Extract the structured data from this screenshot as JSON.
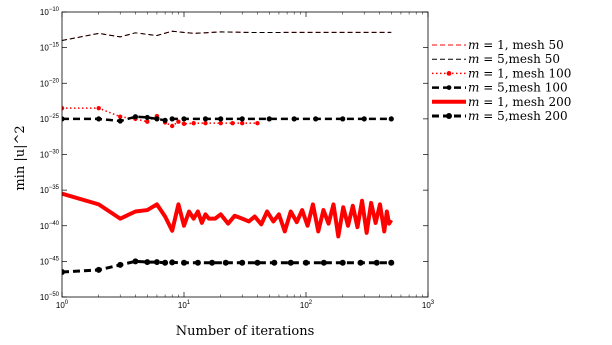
{
  "chart_data": {
    "type": "line",
    "xlabel": "Number of iterations",
    "ylabel": "min |u|^2",
    "xscale": "log",
    "yscale": "log",
    "xlim": [
      1,
      1000
    ],
    "ylim": [
      1e-50,
      1e-10
    ],
    "x_ticks": [
      {
        "value": 1,
        "base": "10",
        "exp": "0"
      },
      {
        "value": 10,
        "base": "10",
        "exp": "1"
      },
      {
        "value": 100,
        "base": "10",
        "exp": "2"
      },
      {
        "value": 1000,
        "base": "10",
        "exp": "3"
      }
    ],
    "y_ticks": [
      {
        "value": 1e-10,
        "base": "10",
        "exp": "−10"
      },
      {
        "value": 1e-15,
        "base": "10",
        "exp": "−15"
      },
      {
        "value": 1e-20,
        "base": "10",
        "exp": "−20"
      },
      {
        "value": 1e-25,
        "base": "10",
        "exp": "−25"
      },
      {
        "value": 1e-30,
        "base": "10",
        "exp": "−30"
      },
      {
        "value": 1e-35,
        "base": "10",
        "exp": "−35"
      },
      {
        "value": 1e-40,
        "base": "10",
        "exp": "−40"
      },
      {
        "value": 1e-45,
        "base": "10",
        "exp": "−45"
      },
      {
        "value": 1e-50,
        "base": "10",
        "exp": "−50"
      }
    ],
    "grid": false,
    "legend_position": "outside-right",
    "series": [
      {
        "name": "m = 1, mesh 50",
        "m_label": "m",
        "rest_label": " = 1, mesh 50",
        "color": "#ff0000",
        "style": "dashed",
        "width": 1,
        "marker": "none",
        "points": [
          [
            1,
            1e-14
          ],
          [
            2,
            1e-13
          ],
          [
            3,
            3.2e-14
          ],
          [
            4,
            1.2e-13
          ],
          [
            6,
            5e-14
          ],
          [
            8,
            2e-13
          ],
          [
            12,
            1e-13
          ],
          [
            20,
            1.6e-13
          ],
          [
            40,
            1.3e-13
          ],
          [
            100,
            1.4e-13
          ],
          [
            200,
            1.4e-13
          ],
          [
            500,
            1.4e-13
          ]
        ]
      },
      {
        "name": "m = 5,mesh 50",
        "m_label": "m",
        "rest_label": " = 5,mesh 50",
        "color": "#000000",
        "style": "dashed",
        "width": 1,
        "marker": "none",
        "points": [
          [
            1,
            1e-14
          ],
          [
            2,
            1e-13
          ],
          [
            3,
            3.2e-14
          ],
          [
            4,
            1.2e-13
          ],
          [
            6,
            5e-14
          ],
          [
            8,
            2e-13
          ],
          [
            12,
            1e-13
          ],
          [
            20,
            1.6e-13
          ],
          [
            40,
            1.3e-13
          ],
          [
            100,
            1.4e-13
          ],
          [
            200,
            1.4e-13
          ],
          [
            500,
            1.4e-13
          ]
        ]
      },
      {
        "name": "m = 1, mesh 100",
        "m_label": "m",
        "rest_label": " = 1, mesh 100",
        "color": "#ff0000",
        "style": "dotted",
        "width": 1.5,
        "marker": "dot",
        "marker_every": "all",
        "points": [
          [
            1,
            3.2e-24
          ],
          [
            2,
            3.2e-24
          ],
          [
            3,
            2e-25
          ],
          [
            4,
            1e-25
          ],
          [
            5,
            4e-26
          ],
          [
            6,
            2.5e-25
          ],
          [
            7,
            3.2e-26
          ],
          [
            8,
            1e-26
          ],
          [
            9,
            4e-26
          ],
          [
            10,
            2e-26
          ],
          [
            12,
            2.5e-26
          ],
          [
            15,
            2.5e-26
          ],
          [
            20,
            2.5e-26
          ],
          [
            25,
            2.5e-26
          ],
          [
            30,
            2.5e-26
          ],
          [
            40,
            2.5e-26
          ]
        ]
      },
      {
        "name": "m = 5,mesh 100",
        "m_label": "m",
        "rest_label": " = 5,mesh 100",
        "color": "#000000",
        "style": "dashed",
        "width": 2.5,
        "marker": "dot",
        "marker_every": "all",
        "points": [
          [
            1,
            1e-25
          ],
          [
            2,
            1e-25
          ],
          [
            3,
            5e-26
          ],
          [
            4,
            2e-25
          ],
          [
            5,
            1.6e-25
          ],
          [
            6,
            1e-25
          ],
          [
            7,
            6.3e-26
          ],
          [
            8,
            1e-25
          ],
          [
            10,
            1e-25
          ],
          [
            15,
            1e-25
          ],
          [
            20,
            1e-25
          ],
          [
            30,
            1e-25
          ],
          [
            50,
            1e-25
          ],
          [
            80,
            1e-25
          ],
          [
            120,
            1e-25
          ],
          [
            200,
            1e-25
          ],
          [
            300,
            1e-25
          ],
          [
            500,
            1e-25
          ]
        ]
      },
      {
        "name": "m = 1, mesh 200",
        "m_label": "m",
        "rest_label": " = 1, mesh 200",
        "color": "#ff0000",
        "style": "solid",
        "width": 4,
        "marker": "none",
        "points": [
          [
            1,
            3.2e-36
          ],
          [
            2,
            1e-37
          ],
          [
            3,
            1e-39
          ],
          [
            4,
            1e-38
          ],
          [
            5,
            1.6e-38
          ],
          [
            6,
            1e-37
          ],
          [
            7,
            2e-39
          ],
          [
            8,
            2e-41
          ],
          [
            9,
            1e-37
          ],
          [
            10,
            1e-40
          ],
          [
            11,
            1e-38
          ],
          [
            12,
            1e-39
          ],
          [
            13,
            1e-38
          ],
          [
            14,
            2.5e-40
          ],
          [
            15,
            4e-39
          ],
          [
            16,
            1e-39
          ],
          [
            18,
            1e-39
          ],
          [
            20,
            4e-39
          ],
          [
            23,
            2e-40
          ],
          [
            26,
            2.5e-39
          ],
          [
            30,
            1e-39
          ],
          [
            34,
            4e-40
          ],
          [
            38,
            2e-39
          ],
          [
            43,
            1.6e-40
          ],
          [
            48,
            1e-38
          ],
          [
            54,
            4e-40
          ],
          [
            60,
            4e-39
          ],
          [
            67,
            1.6e-41
          ],
          [
            75,
            1e-38
          ],
          [
            84,
            3.2e-40
          ],
          [
            93,
            1.6e-38
          ],
          [
            103,
            1e-40
          ],
          [
            114,
            1e-37
          ],
          [
            126,
            1.6e-41
          ],
          [
            139,
            1.6e-38
          ],
          [
            153,
            2e-40
          ],
          [
            168,
            1e-37
          ],
          [
            184,
            3.2e-42
          ],
          [
            202,
            4e-38
          ],
          [
            221,
            1e-40
          ],
          [
            242,
            6.3e-38
          ],
          [
            264,
            6.3e-41
          ],
          [
            288,
            3.2e-37
          ],
          [
            314,
            1e-41
          ],
          [
            342,
            1.6e-37
          ],
          [
            372,
            2.5e-40
          ],
          [
            404,
            1e-37
          ],
          [
            438,
            1.6e-41
          ],
          [
            460,
            1e-38
          ],
          [
            480,
            2e-40
          ],
          [
            500,
            6.3e-40
          ]
        ]
      },
      {
        "name": "m = 5,mesh 200",
        "m_label": "m",
        "rest_label": " = 5,mesh 200",
        "color": "#000000",
        "style": "dashed",
        "width": 3,
        "marker": "dot",
        "marker_every": "all",
        "points": [
          [
            1,
            3.2e-47
          ],
          [
            2,
            6.3e-47
          ],
          [
            3,
            3.2e-46
          ],
          [
            4,
            1e-45
          ],
          [
            5,
            8e-46
          ],
          [
            6,
            8e-46
          ],
          [
            7,
            6.3e-46
          ],
          [
            8,
            7.1e-46
          ],
          [
            10,
            6.3e-46
          ],
          [
            13,
            6.3e-46
          ],
          [
            17,
            6.3e-46
          ],
          [
            22,
            6.3e-46
          ],
          [
            30,
            6.3e-46
          ],
          [
            40,
            6.3e-46
          ],
          [
            55,
            6.3e-46
          ],
          [
            75,
            6.3e-46
          ],
          [
            100,
            6.3e-46
          ],
          [
            140,
            6.3e-46
          ],
          [
            200,
            6.3e-46
          ],
          [
            280,
            6.3e-46
          ],
          [
            380,
            6.3e-46
          ],
          [
            500,
            6.3e-46
          ]
        ]
      }
    ]
  }
}
